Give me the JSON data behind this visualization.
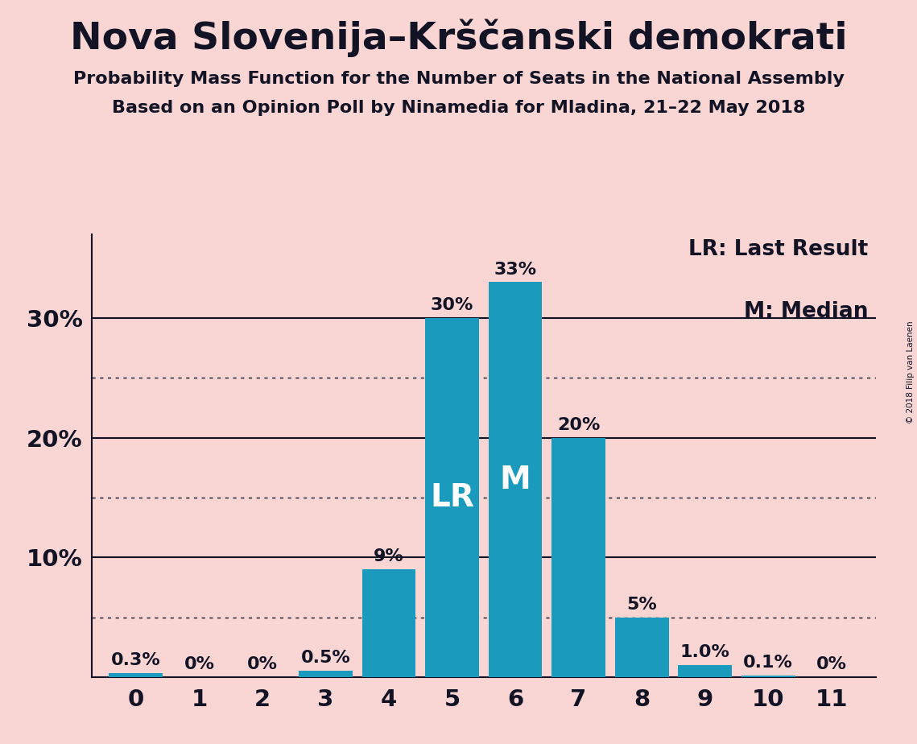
{
  "title": "Nova Slovenija–Krščanski demokrati",
  "subtitle1": "Probability Mass Function for the Number of Seats in the National Assembly",
  "subtitle2": "Based on an Opinion Poll by Ninamedia for Mladina, 21–22 May 2018",
  "copyright": "© 2018 Filip van Laenen",
  "categories": [
    0,
    1,
    2,
    3,
    4,
    5,
    6,
    7,
    8,
    9,
    10,
    11
  ],
  "values": [
    0.3,
    0.0,
    0.0,
    0.5,
    9.0,
    30.0,
    33.0,
    20.0,
    5.0,
    1.0,
    0.1,
    0.0
  ],
  "labels": [
    "0.3%",
    "0%",
    "0%",
    "0.5%",
    "9%",
    "30%",
    "33%",
    "20%",
    "5%",
    "1.0%",
    "0.1%",
    "0%"
  ],
  "bar_color": "#1a9bbe",
  "background_color": "#f9d5d3",
  "text_color": "#131326",
  "solid_gridlines": [
    10,
    20,
    30
  ],
  "dotted_gridlines": [
    5,
    15,
    25
  ],
  "lr_bar": 5,
  "median_bar": 6,
  "legend_lr": "LR: Last Result",
  "legend_m": "M: Median",
  "label_lr": "LR",
  "label_m": "M",
  "ylim": [
    0,
    37
  ]
}
